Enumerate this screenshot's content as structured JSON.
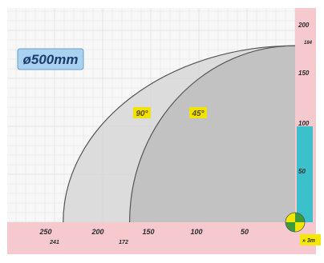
{
  "diameter_label": "ø500mm",
  "colors": {
    "axis_band": "#f6c9cf",
    "plot_bg": "#f7f7f7",
    "grid_line": "#e3e3e3",
    "area_90": "#d7d7d7",
    "area_45": "#bdbdbd",
    "curve": "#555555",
    "angle_tag": "#f0e300",
    "diameter_tag": "#a8d2f0",
    "bar": "#3cc0cc",
    "pivot_yellow": "#f2e600",
    "pivot_green": "#3d9a3a",
    "note_tag": "#f5e800"
  },
  "x_axis": {
    "ticks": [
      "250",
      "200",
      "150",
      "100",
      "50"
    ],
    "extremes": [
      "241",
      "172"
    ]
  },
  "y_axis": {
    "ticks": [
      "200",
      "150",
      "100",
      "50"
    ],
    "max_value": "184"
  },
  "curves": [
    {
      "angle_label": "90°",
      "reach": 241,
      "peak_height": 184
    },
    {
      "angle_label": "45°",
      "reach": 172,
      "peak_height": 184
    }
  ],
  "vertical_bar": {
    "from": 0,
    "to": 100
  },
  "note_label": "» 3m"
}
